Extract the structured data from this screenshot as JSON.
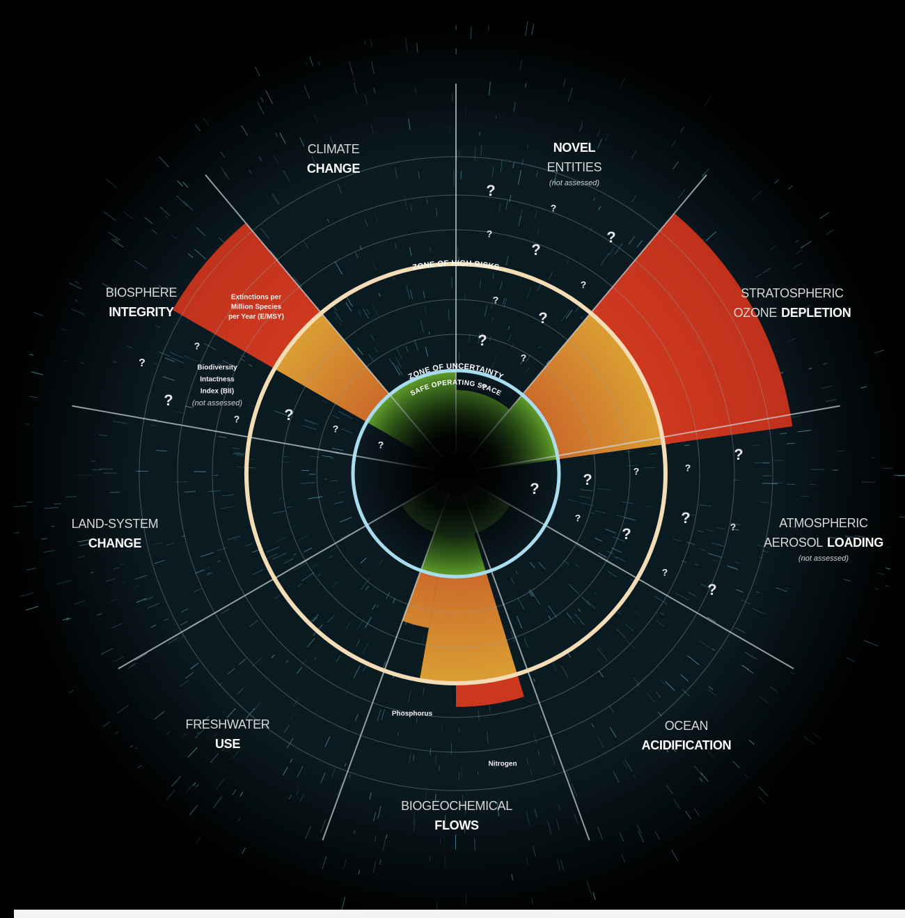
{
  "boundaries": [
    {
      "lines": [
        {
          "light": "CLIMATE"
        },
        {
          "bold": "CHANGE"
        }
      ]
    },
    {
      "lines": [
        {
          "bold": "NOVEL"
        },
        {
          "light": "ENTITIES"
        }
      ],
      "note": "(not assessed)"
    },
    {
      "lines": [
        {
          "light": "STRATOSPHERIC"
        },
        {
          "light": "OZONE",
          "bold": "DEPLETION"
        }
      ]
    },
    {
      "lines": [
        {
          "light": "ATMOSPHERIC"
        },
        {
          "light": "AEROSOL",
          "bold": "LOADING"
        }
      ],
      "note": "(not assessed)"
    },
    {
      "lines": [
        {
          "light": "OCEAN"
        },
        {
          "bold": "ACIDIFICATION"
        }
      ]
    },
    {
      "lines": [
        {
          "light": "BIOGEOCHEMICAL"
        },
        {
          "bold": "FLOWS"
        }
      ]
    },
    {
      "lines": [
        {
          "light": "FRESHWATER"
        },
        {
          "bold": "USE"
        }
      ]
    },
    {
      "lines": [
        {
          "light": "LAND-SYSTEM"
        },
        {
          "bold": "CHANGE"
        }
      ]
    },
    {
      "lines": [
        {
          "light": "BIOSPHERE"
        },
        {
          "bold": "INTEGRITY"
        }
      ]
    }
  ],
  "zones": {
    "high_risk": "ZONE OF HIGH RISKS",
    "uncertainty": "ZONE OF UNCERTAINTY",
    "safe": "SAFE OPERATING SPACE"
  },
  "sub_labels": {
    "extinctions": [
      "Extinctions per",
      "Million Species",
      "per Year (E/MSY)"
    ],
    "bii": [
      "Biodiversity",
      "Intactness",
      "Index (BII)",
      "(not assessed)"
    ],
    "phosphorus": "Phosphorus",
    "nitrogen": "Nitrogen"
  },
  "question_marks": [
    "?",
    "?",
    "?",
    "?",
    "?",
    "?",
    "?",
    "?",
    "?",
    "?",
    "?",
    "?",
    "?",
    "?",
    "?",
    "?",
    "?",
    "?",
    "?",
    "?",
    "?",
    "?",
    "?",
    "?",
    "?",
    "?",
    "?",
    "?",
    "?"
  ]
}
